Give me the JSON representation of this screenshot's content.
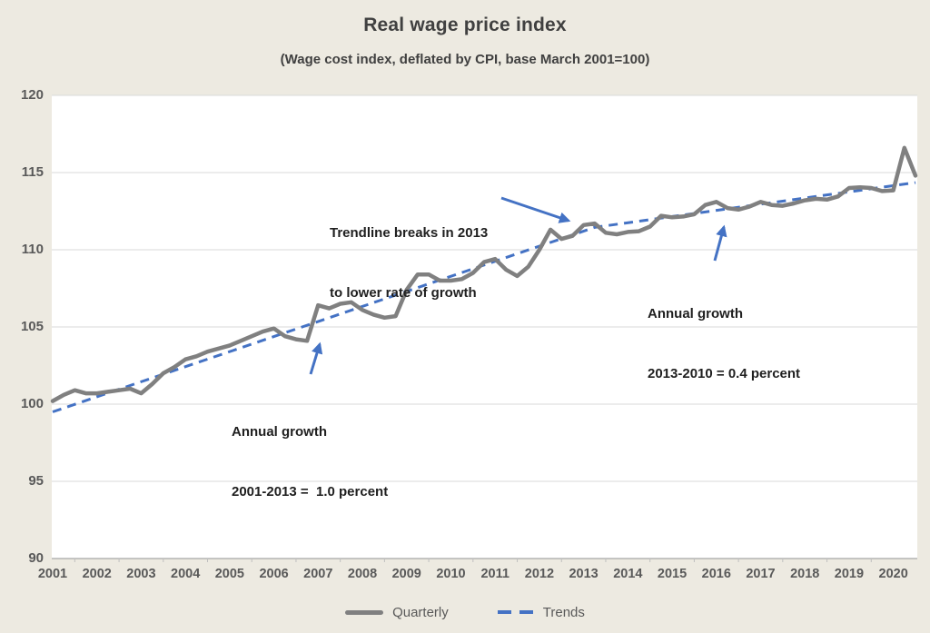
{
  "page": {
    "background": "#EDEAE1"
  },
  "chart_data": {
    "type": "line",
    "title": "Real wage price index",
    "subtitle": "(Wage cost index, deflated by CPI, base March 2001=100)",
    "xlabel": "",
    "ylabel": "",
    "x_axis": {
      "years": [
        2001,
        2002,
        2003,
        2004,
        2005,
        2006,
        2007,
        2008,
        2009,
        2010,
        2011,
        2012,
        2013,
        2014,
        2015,
        2016,
        2017,
        2018,
        2019,
        2020
      ],
      "frequency": "quarterly",
      "first_point": "2001Q1",
      "last_point": "2020Q3"
    },
    "y_axis": {
      "min": 90,
      "max": 120,
      "step": 5,
      "ticks": [
        90,
        95,
        100,
        105,
        110,
        115,
        120
      ]
    },
    "gridlines": {
      "horizontal": true,
      "color": "#D9D9D9"
    },
    "series": [
      {
        "name": "Quarterly",
        "color": "#808080",
        "style": "solid",
        "values": [
          100.2,
          100.6,
          100.9,
          100.7,
          100.7,
          100.8,
          100.9,
          101.0,
          100.7,
          101.3,
          102.0,
          102.4,
          102.9,
          103.1,
          103.4,
          103.6,
          103.8,
          104.1,
          104.4,
          104.7,
          104.9,
          104.4,
          104.2,
          104.1,
          106.4,
          106.2,
          106.5,
          106.6,
          106.1,
          105.8,
          105.6,
          105.7,
          107.4,
          108.4,
          108.4,
          108.0,
          108.0,
          108.1,
          108.5,
          109.2,
          109.4,
          108.7,
          108.3,
          108.9,
          110.0,
          111.3,
          110.7,
          110.9,
          111.6,
          111.7,
          111.1,
          111.0,
          111.15,
          111.2,
          111.5,
          112.2,
          112.1,
          112.15,
          112.3,
          112.9,
          113.1,
          112.7,
          112.6,
          112.8,
          113.1,
          112.9,
          112.85,
          113.0,
          113.2,
          113.3,
          113.25,
          113.45,
          114.0,
          114.05,
          114.0,
          113.8,
          113.85,
          116.6,
          114.8
        ]
      },
      {
        "name": "Trends",
        "color": "#4472C4",
        "style": "dashed",
        "start_value": 99.5,
        "break_quarter_index": 49,
        "break_label": "2013Q2",
        "break_value": 111.45,
        "end_value": 114.35
      }
    ],
    "legend": {
      "position": "bottom",
      "entries": [
        "Quarterly",
        "Trends"
      ]
    },
    "annotations": [
      {
        "line1": "Trendline breaks in 2013",
        "line2": "to lower rate of growth",
        "arrow_points_to": "trendline at 2013"
      },
      {
        "line1": "Annual growth",
        "line2": "2013-2010 = 0.4 percent",
        "arrow_points_to": "trendline near 2016"
      },
      {
        "line1": "Annual growth",
        "line2": "2001-2013 =  1.0 percent",
        "arrow_points_to": "trendline near 2007"
      }
    ],
    "colors": {
      "quarterly_line": "#808080",
      "trend_line": "#4472C4",
      "arrow": "#4472C4",
      "plot_background": "#FFFFFF",
      "page_background": "#EDEAE1",
      "axis_text": "#595959",
      "title_text": "#404040",
      "axis_line": "#A6A6A6"
    }
  }
}
